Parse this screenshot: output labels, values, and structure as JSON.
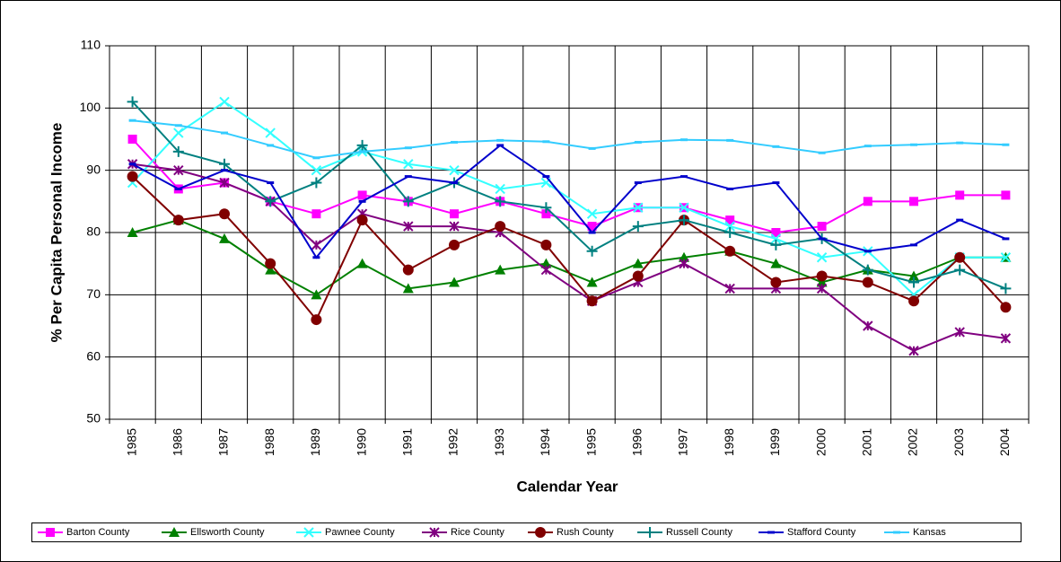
{
  "chart_data": {
    "type": "line",
    "y_label": "% Per Capita Personal Income",
    "x_label": "Calendar Year",
    "categories": [
      "1985",
      "1986",
      "1987",
      "1988",
      "1989",
      "1990",
      "1991",
      "1992",
      "1993",
      "1994",
      "1995",
      "1996",
      "1997",
      "1998",
      "1999",
      "2000",
      "2001",
      "2002",
      "2003",
      "2004"
    ],
    "ylim": [
      50,
      110
    ],
    "yticks": [
      50,
      60,
      70,
      80,
      90,
      100,
      110
    ],
    "grid": true,
    "legend": "bottom",
    "series": [
      {
        "name": "Barton County",
        "color": "#ff00ff",
        "marker": "square",
        "values": [
          95,
          87,
          88,
          85,
          83,
          86,
          85,
          83,
          85,
          83,
          81,
          84,
          84,
          82,
          80,
          81,
          85,
          85,
          86,
          86
        ]
      },
      {
        "name": "Ellsworth County",
        "color": "#008000",
        "marker": "triangle",
        "values": [
          80,
          82,
          79,
          74,
          70,
          75,
          71,
          72,
          74,
          75,
          72,
          75,
          76,
          77,
          75,
          72,
          74,
          73,
          76,
          76
        ]
      },
      {
        "name": "Pawnee County",
        "color": "#33ffff",
        "marker": "x",
        "values": [
          88,
          96,
          101,
          96,
          90,
          93,
          91,
          90,
          87,
          88,
          83,
          84,
          84,
          81,
          79,
          76,
          77,
          70,
          76,
          76
        ]
      },
      {
        "name": "Rice County",
        "color": "#800080",
        "marker": "star",
        "values": [
          91,
          90,
          88,
          85,
          78,
          83,
          81,
          81,
          80,
          74,
          69,
          72,
          75,
          71,
          71,
          71,
          65,
          61,
          64,
          63
        ]
      },
      {
        "name": "Rush County",
        "color": "#800000",
        "marker": "circle",
        "values": [
          89,
          82,
          83,
          75,
          66,
          82,
          74,
          78,
          81,
          78,
          69,
          73,
          82,
          77,
          72,
          73,
          72,
          69,
          76,
          68
        ]
      },
      {
        "name": "Russell County",
        "color": "#008080",
        "marker": "plus",
        "values": [
          101,
          93,
          91,
          85,
          88,
          94,
          85,
          88,
          85,
          84,
          77,
          81,
          82,
          80,
          78,
          79,
          74,
          72,
          74,
          71
        ]
      },
      {
        "name": "Stafford County",
        "color": "#0000cc",
        "marker": "dash",
        "values": [
          91,
          87,
          90,
          88,
          76,
          85,
          89,
          88,
          94,
          89,
          80,
          88,
          89,
          87,
          88,
          79,
          77,
          78,
          82,
          79
        ]
      },
      {
        "name": "Kansas",
        "color": "#33ccff",
        "marker": "dash",
        "values": [
          98,
          97.2,
          96,
          94,
          92,
          93,
          93.6,
          94.5,
          94.8,
          94.6,
          93.5,
          94.5,
          94.9,
          94.8,
          93.8,
          92.8,
          93.9,
          94.1,
          94.4,
          94.1
        ]
      }
    ]
  }
}
